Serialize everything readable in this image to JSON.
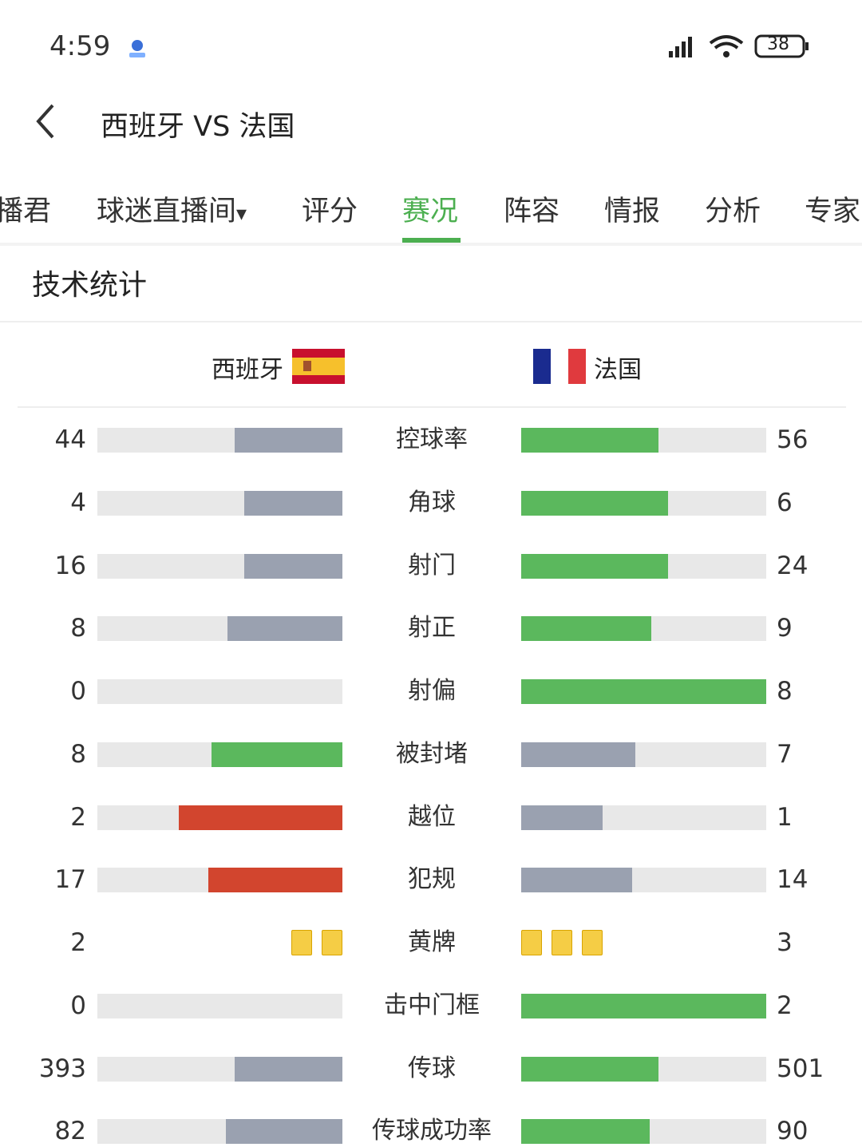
{
  "status_bar": {
    "time": "4:59",
    "battery": "38"
  },
  "header": {
    "title": "西班牙 VS 法国"
  },
  "tabs": [
    {
      "label": "播君"
    },
    {
      "label": "球迷直播间"
    },
    {
      "label": "评分"
    },
    {
      "label": "赛况",
      "active": true
    },
    {
      "label": "阵容"
    },
    {
      "label": "情报"
    },
    {
      "label": "分析"
    },
    {
      "label": "专家"
    }
  ],
  "section": {
    "title": "技术统计"
  },
  "teams": {
    "home": "西班牙",
    "away": "法国"
  },
  "rows": [
    {
      "label": "控球率",
      "home": 44,
      "away": 56,
      "home_color": "#9aa1b0",
      "away_color": "#5bb85d"
    },
    {
      "label": "角球",
      "home": 4,
      "away": 6,
      "home_color": "#9aa1b0",
      "away_color": "#5bb85d"
    },
    {
      "label": "射门",
      "home": 16,
      "away": 24,
      "home_color": "#9aa1b0",
      "away_color": "#5bb85d"
    },
    {
      "label": "射正",
      "home": 8,
      "away": 9,
      "home_color": "#9aa1b0",
      "away_color": "#5bb85d"
    },
    {
      "label": "射偏",
      "home": 0,
      "away": 8,
      "home_color": "#9aa1b0",
      "away_color": "#5bb85d"
    },
    {
      "label": "被封堵",
      "home": 8,
      "away": 7,
      "home_color": "#5bb85d",
      "away_color": "#9aa1b0"
    },
    {
      "label": "越位",
      "home": 2,
      "away": 1,
      "home_color": "#d2452e",
      "away_color": "#9aa1b0"
    },
    {
      "label": "犯规",
      "home": 17,
      "away": 14,
      "home_color": "#d2452e",
      "away_color": "#9aa1b0"
    },
    {
      "label": "黄牌",
      "home": 2,
      "away": 3,
      "kind": "cards",
      "home_color": "#f5cd45",
      "away_color": "#f5cd45"
    },
    {
      "label": "击中门框",
      "home": 0,
      "away": 2,
      "home_color": "#9aa1b0",
      "away_color": "#5bb85d"
    },
    {
      "label": "传球",
      "home": 393,
      "away": 501,
      "home_color": "#9aa1b0",
      "away_color": "#5bb85d"
    },
    {
      "label": "传球成功率",
      "home": 82,
      "away": 90,
      "home_color": "#9aa1b0",
      "away_color": "#5bb85d"
    }
  ]
}
